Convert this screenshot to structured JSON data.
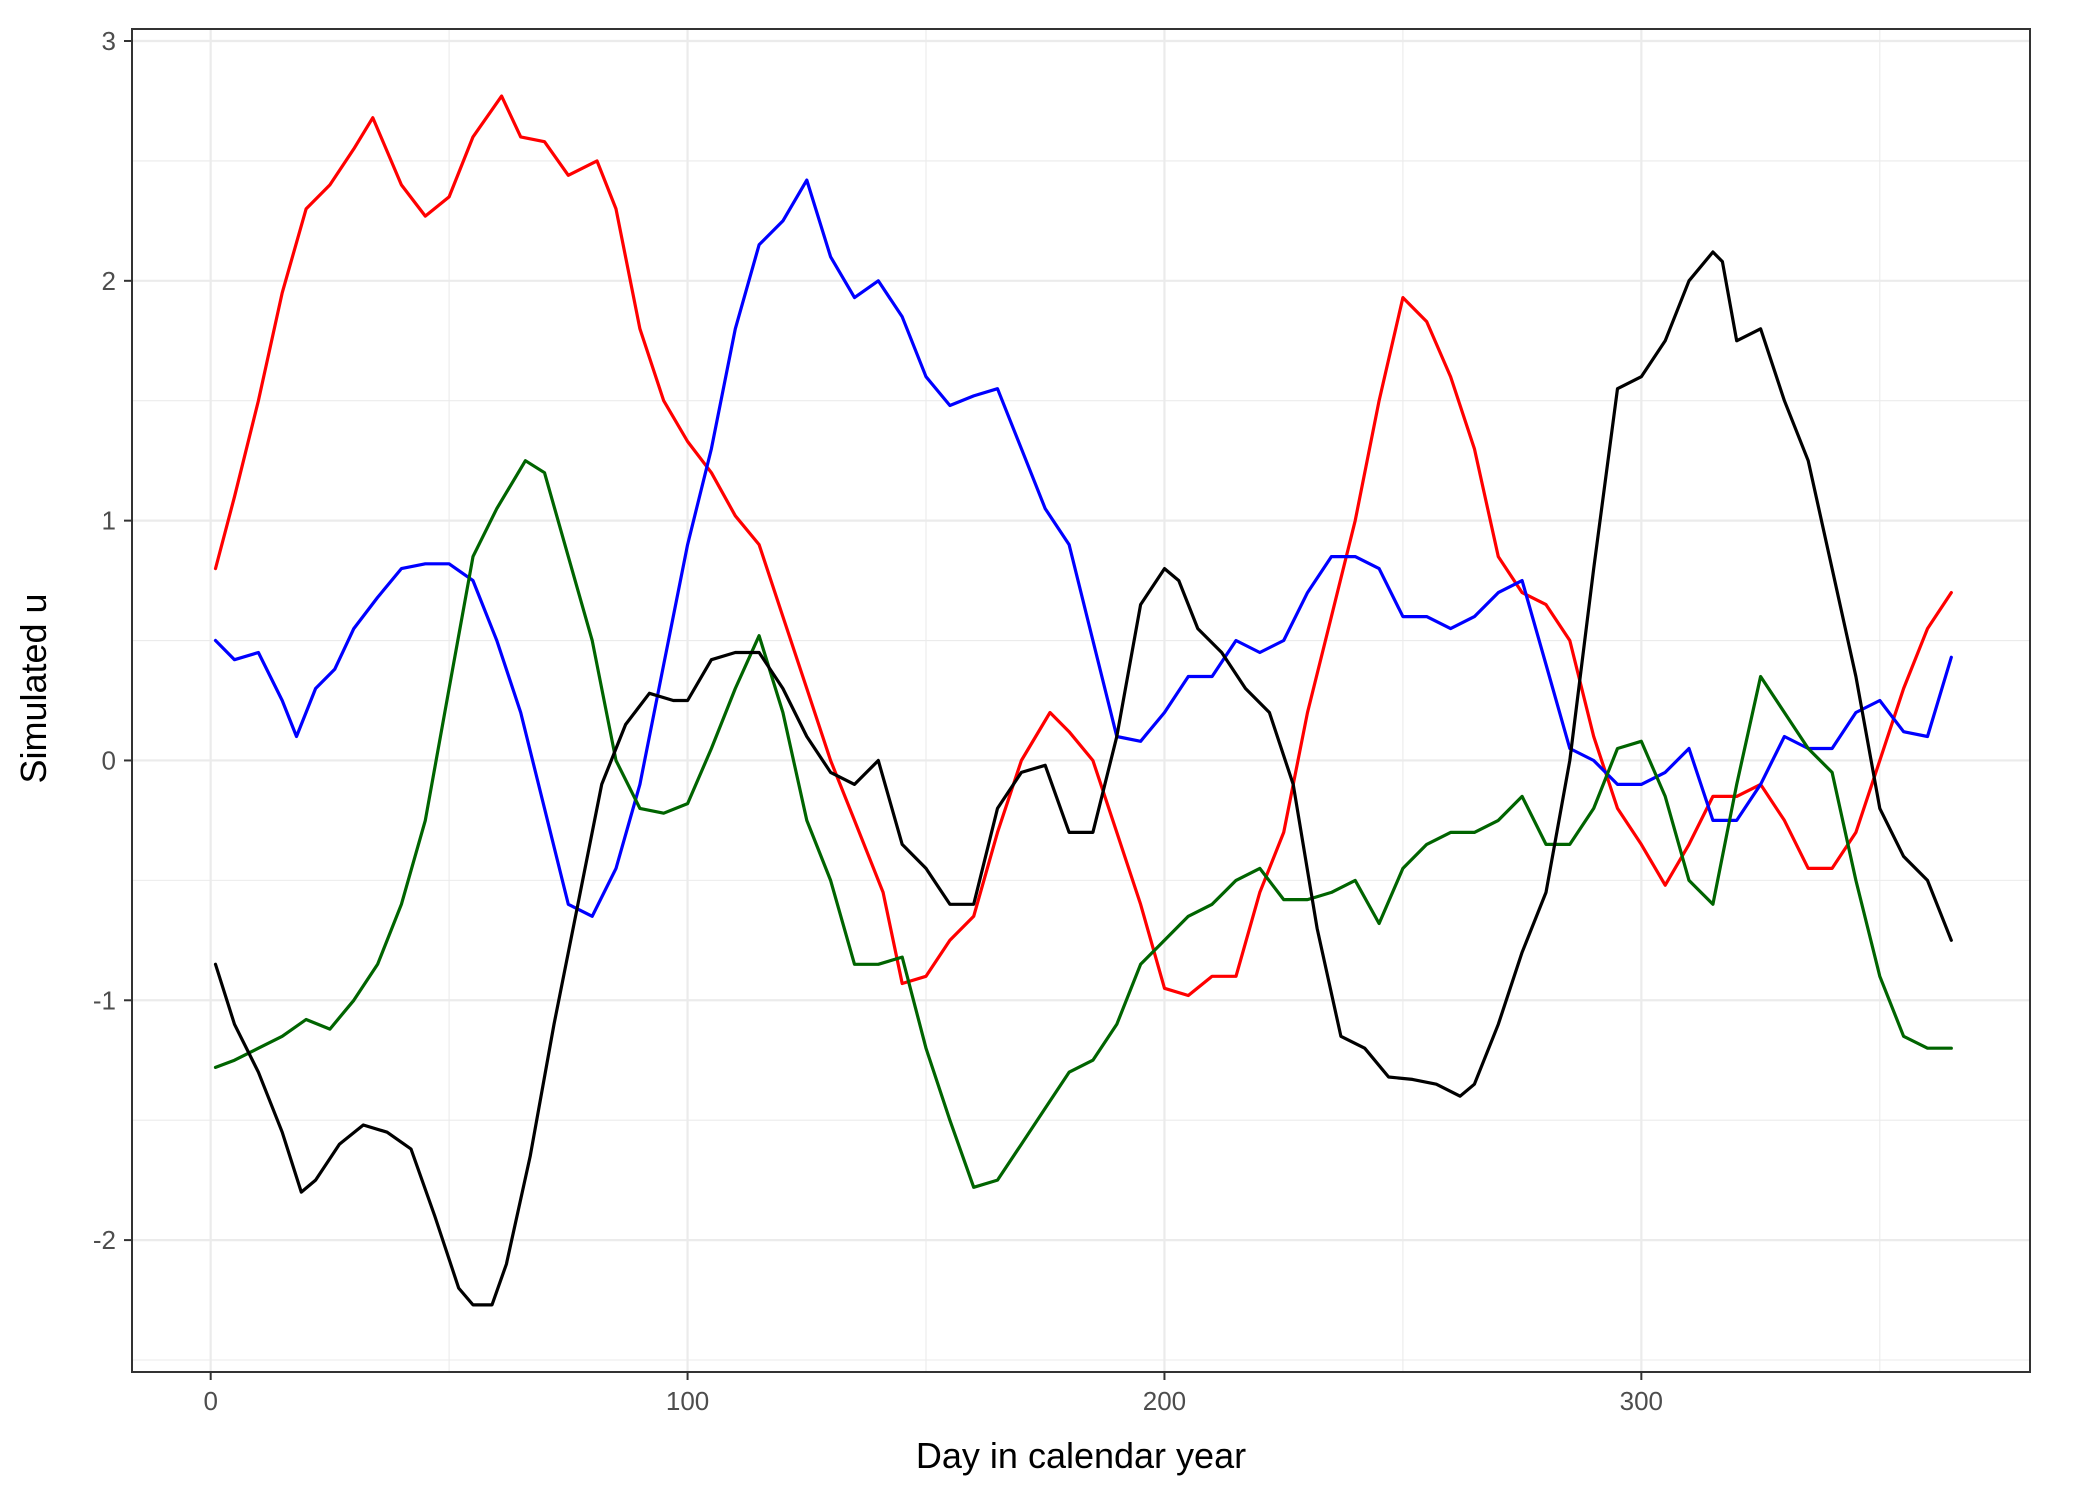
{
  "chart_data": {
    "type": "line",
    "title": "",
    "xlabel": "Day in calendar year",
    "ylabel": "Simulated u",
    "xlim": [
      -16.5,
      381.5
    ],
    "ylim": [
      -2.55,
      3.05
    ],
    "xticks": [
      0,
      100,
      200,
      300
    ],
    "xtick_labels": [
      "0",
      "100",
      "200",
      "300"
    ],
    "yticks": [
      -2,
      -1,
      0,
      1,
      2,
      3
    ],
    "ytick_labels": [
      "-2",
      "-1",
      "0",
      "1",
      "2",
      "3"
    ],
    "x_minor_breaks": [
      50,
      150,
      250,
      350
    ],
    "y_minor_breaks": [
      -2.5,
      -1.5,
      -0.5,
      0.5,
      1.5,
      2.5
    ],
    "grid": true,
    "legend": "none",
    "series": [
      {
        "color": "#ff0000",
        "x": [
          1,
          5,
          10,
          15,
          20,
          25,
          30,
          34,
          40,
          45,
          50,
          55,
          61,
          65,
          70,
          75,
          81,
          85,
          90,
          95,
          100,
          105,
          110,
          115,
          120,
          125,
          130,
          135,
          141,
          145,
          150,
          155,
          160,
          165,
          170,
          176,
          180,
          185,
          190,
          195,
          200,
          205,
          210,
          215,
          220,
          225,
          230,
          235,
          240,
          245,
          250,
          255,
          260,
          265,
          270,
          275,
          280,
          285,
          290,
          295,
          300,
          305,
          310,
          315,
          320,
          325,
          330,
          335,
          340,
          345,
          350,
          355,
          360,
          365
        ],
        "y": [
          0.8,
          1.1,
          1.5,
          1.95,
          2.3,
          2.4,
          2.55,
          2.68,
          2.4,
          2.27,
          2.35,
          2.6,
          2.77,
          2.6,
          2.58,
          2.44,
          2.5,
          2.3,
          1.8,
          1.5,
          1.33,
          1.2,
          1.02,
          0.9,
          0.6,
          0.3,
          0.0,
          -0.25,
          -0.55,
          -0.93,
          -0.9,
          -0.75,
          -0.65,
          -0.3,
          0.0,
          0.2,
          0.12,
          0.0,
          -0.3,
          -0.6,
          -0.95,
          -0.98,
          -0.9,
          -0.9,
          -0.55,
          -0.3,
          0.2,
          0.6,
          1.0,
          1.5,
          1.93,
          1.83,
          1.6,
          1.3,
          0.85,
          0.7,
          0.65,
          0.5,
          0.1,
          -0.2,
          -0.35,
          -0.52,
          -0.35,
          -0.15,
          -0.15,
          -0.1,
          -0.25,
          -0.45,
          -0.45,
          -0.3,
          0.0,
          0.3,
          0.55,
          0.7
        ]
      },
      {
        "color": "#0000ff",
        "x": [
          1,
          5,
          10,
          15,
          18,
          22,
          26,
          30,
          35,
          40,
          45,
          50,
          55,
          60,
          65,
          70,
          75,
          80,
          85,
          90,
          95,
          100,
          105,
          110,
          115,
          120,
          125,
          130,
          135,
          140,
          145,
          150,
          155,
          160,
          165,
          170,
          175,
          180,
          185,
          190,
          195,
          200,
          205,
          210,
          215,
          220,
          225,
          230,
          235,
          240,
          245,
          250,
          255,
          260,
          265,
          270,
          275,
          280,
          285,
          290,
          295,
          300,
          305,
          310,
          315,
          320,
          325,
          330,
          335,
          340,
          345,
          350,
          355,
          360,
          365
        ],
        "y": [
          0.5,
          0.42,
          0.45,
          0.25,
          0.1,
          0.3,
          0.38,
          0.55,
          0.68,
          0.8,
          0.82,
          0.82,
          0.75,
          0.5,
          0.2,
          -0.2,
          -0.6,
          -0.65,
          -0.45,
          -0.1,
          0.4,
          0.9,
          1.3,
          1.8,
          2.15,
          2.25,
          2.42,
          2.1,
          1.93,
          2.0,
          1.85,
          1.6,
          1.48,
          1.52,
          1.55,
          1.3,
          1.05,
          0.9,
          0.5,
          0.1,
          0.08,
          0.2,
          0.35,
          0.35,
          0.5,
          0.45,
          0.5,
          0.7,
          0.85,
          0.85,
          0.8,
          0.6,
          0.6,
          0.55,
          0.6,
          0.7,
          0.75,
          0.4,
          0.05,
          0.0,
          -0.1,
          -0.1,
          -0.05,
          0.05,
          -0.25,
          -0.25,
          -0.1,
          0.1,
          0.05,
          0.05,
          0.2,
          0.25,
          0.12,
          0.1,
          0.43
        ]
      },
      {
        "color": "#006400",
        "x": [
          1,
          5,
          10,
          15,
          20,
          25,
          30,
          35,
          40,
          45,
          50,
          55,
          60,
          66,
          70,
          75,
          80,
          85,
          90,
          95,
          100,
          105,
          110,
          115,
          120,
          125,
          130,
          135,
          140,
          145,
          150,
          155,
          160,
          165,
          170,
          175,
          180,
          185,
          190,
          195,
          200,
          205,
          210,
          215,
          220,
          225,
          230,
          235,
          240,
          245,
          250,
          255,
          260,
          265,
          270,
          275,
          280,
          285,
          290,
          295,
          300,
          305,
          310,
          315,
          320,
          325,
          330,
          335,
          340,
          345,
          350,
          355,
          360,
          365
        ],
        "y": [
          -1.28,
          -1.25,
          -1.2,
          -1.15,
          -1.08,
          -1.12,
          -1.0,
          -0.85,
          -0.6,
          -0.25,
          0.3,
          0.85,
          1.05,
          1.25,
          1.2,
          0.85,
          0.5,
          0.0,
          -0.2,
          -0.22,
          -0.18,
          0.05,
          0.3,
          0.52,
          0.2,
          -0.25,
          -0.5,
          -0.85,
          -0.85,
          -0.82,
          -1.2,
          -1.5,
          -1.78,
          -1.75,
          -1.6,
          -1.45,
          -1.3,
          -1.25,
          -1.1,
          -0.85,
          -0.75,
          -0.65,
          -0.6,
          -0.5,
          -0.45,
          -0.58,
          -0.58,
          -0.55,
          -0.5,
          -0.68,
          -0.45,
          -0.35,
          -0.3,
          -0.3,
          -0.25,
          -0.15,
          -0.35,
          -0.35,
          -0.2,
          0.05,
          0.08,
          -0.15,
          -0.5,
          -0.6,
          -0.1,
          0.35,
          0.2,
          0.05,
          -0.05,
          -0.5,
          -0.9,
          -1.15,
          -1.2,
          -1.2
        ]
      },
      {
        "color": "#000000",
        "x": [
          1,
          5,
          10,
          15,
          19,
          22,
          27,
          32,
          37,
          42,
          47,
          52,
          55,
          59,
          62,
          67,
          72,
          77,
          82,
          87,
          92,
          97,
          100,
          105,
          110,
          115,
          120,
          125,
          130,
          135,
          140,
          145,
          150,
          155,
          160,
          165,
          170,
          175,
          180,
          185,
          190,
          195,
          200,
          203,
          207,
          212,
          217,
          222,
          227,
          232,
          237,
          242,
          247,
          252,
          257,
          262,
          265,
          270,
          275,
          280,
          285,
          290,
          295,
          300,
          305,
          310,
          315,
          317,
          320,
          325,
          330,
          335,
          340,
          345,
          350,
          355,
          360,
          365
        ],
        "y": [
          -0.85,
          -1.1,
          -1.3,
          -1.55,
          -1.8,
          -1.75,
          -1.6,
          -1.52,
          -1.55,
          -1.62,
          -1.9,
          -2.2,
          -2.27,
          -2.27,
          -2.1,
          -1.65,
          -1.1,
          -0.6,
          -0.1,
          0.15,
          0.28,
          0.25,
          0.25,
          0.42,
          0.45,
          0.45,
          0.3,
          0.1,
          -0.05,
          -0.1,
          0.0,
          -0.35,
          -0.45,
          -0.6,
          -0.6,
          -0.2,
          -0.05,
          -0.02,
          -0.3,
          -0.3,
          0.1,
          0.65,
          0.8,
          0.75,
          0.55,
          0.45,
          0.3,
          0.2,
          -0.1,
          -0.7,
          -1.15,
          -1.2,
          -1.32,
          -1.33,
          -1.35,
          -1.4,
          -1.35,
          -1.1,
          -0.8,
          -0.55,
          0.0,
          0.8,
          1.55,
          1.6,
          1.75,
          2.0,
          2.12,
          2.08,
          1.75,
          1.8,
          1.5,
          1.25,
          0.8,
          0.35,
          -0.2,
          -0.4,
          -0.5,
          -0.75
        ]
      }
    ]
  }
}
